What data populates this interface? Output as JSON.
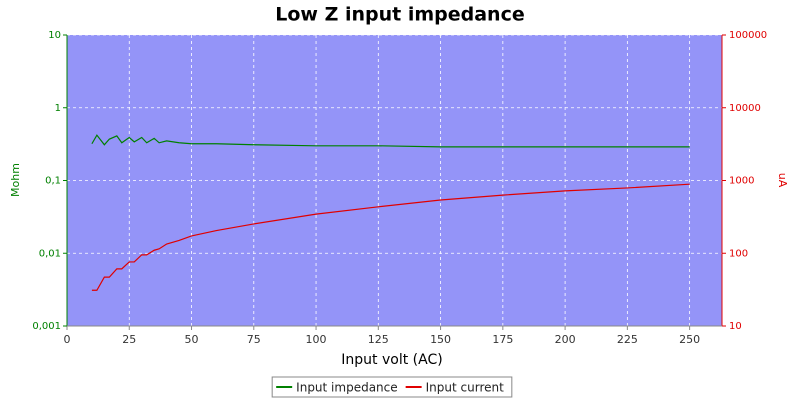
{
  "chart_data": {
    "type": "line",
    "title": "Low Z input impedance",
    "x_label": "Input volt (AC)",
    "y_label": "Mohm",
    "y2_label": "uA",
    "x": [
      10,
      12,
      15,
      17,
      20,
      22,
      25,
      27,
      30,
      32,
      35,
      37,
      40,
      45,
      50,
      60,
      75,
      100,
      125,
      150,
      175,
      200,
      225,
      250
    ],
    "series": [
      {
        "name": "Input impedance",
        "color": "#008000",
        "values": [
          0.32,
          0.42,
          0.31,
          0.37,
          0.41,
          0.33,
          0.39,
          0.34,
          0.39,
          0.33,
          0.38,
          0.33,
          0.35,
          0.33,
          0.32,
          0.32,
          0.31,
          0.3,
          0.3,
          0.29,
          0.29,
          0.29,
          0.29,
          0.29
        ]
      },
      {
        "name": "Input current",
        "color": "#e00000",
        "axis": "y2",
        "values": [
          31,
          31,
          47,
          47,
          61,
          61,
          76,
          76,
          95,
          95,
          110,
          115,
          134,
          150,
          173,
          205,
          253,
          345,
          435,
          540,
          630,
          720,
          790,
          890
        ]
      }
    ],
    "xlim": [
      0,
      263
    ],
    "xticks": [
      0,
      25,
      50,
      75,
      100,
      125,
      150,
      175,
      200,
      225,
      250
    ],
    "ylim": [
      0.001,
      10
    ],
    "yticks": [
      {
        "value": 0.001,
        "label": "0,001"
      },
      {
        "value": 0.01,
        "label": "0,01"
      },
      {
        "value": 0.1,
        "label": "0,1"
      },
      1,
      10
    ],
    "y2lim": [
      10,
      100000
    ],
    "y2ticks": [
      10,
      100,
      1000,
      10000,
      100000
    ],
    "ylog": true,
    "y2log": true,
    "grid": true,
    "legend": "bottom",
    "background": "#9494f8"
  }
}
